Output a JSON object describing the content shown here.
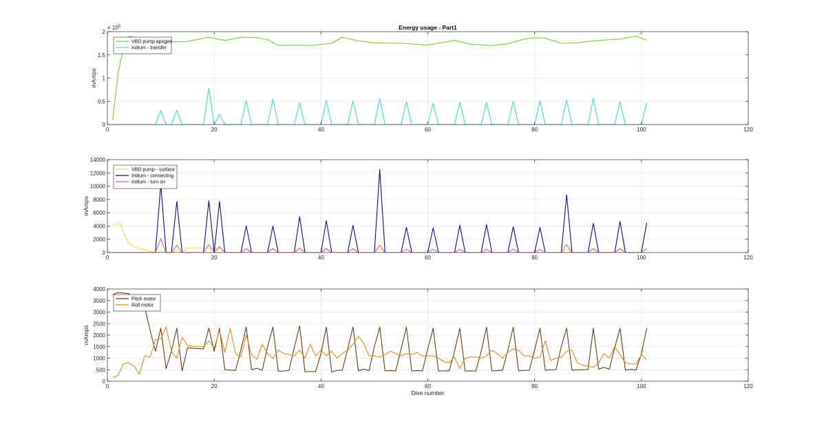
{
  "chart_data": [
    {
      "type": "line",
      "title": "Energy usage - Part1",
      "xlabel": "",
      "ylabel": "mAmps",
      "exponent_label": "× 10",
      "exponent_power": "5",
      "xlim": [
        0,
        120
      ],
      "ylim": [
        0,
        200000
      ],
      "xticks": [
        0,
        20,
        40,
        60,
        80,
        100,
        120
      ],
      "yticks": [
        0,
        50000,
        100000,
        150000,
        200000
      ],
      "ytick_labels": [
        "0",
        "0.5",
        "1",
        "1.5",
        "2"
      ],
      "grid": true,
      "legend_position": "top-left",
      "series": [
        {
          "name": "VBD pump apogee",
          "color": "#77d12e",
          "x": [
            1,
            2,
            3,
            4,
            8,
            10,
            12,
            15,
            19,
            22,
            25,
            28,
            30,
            32,
            35,
            38,
            42,
            44,
            47,
            50,
            55,
            60,
            65,
            68,
            72,
            75,
            78,
            80,
            82,
            85,
            88,
            90,
            93,
            96,
            99,
            101
          ],
          "y": [
            10000,
            110000,
            165000,
            190000,
            182000,
            181000,
            178000,
            179000,
            188000,
            181000,
            188000,
            187000,
            183000,
            170000,
            171000,
            170000,
            175000,
            188000,
            180000,
            176000,
            175000,
            171000,
            181000,
            173000,
            170000,
            174000,
            184000,
            187000,
            186000,
            175000,
            176000,
            179000,
            182000,
            184000,
            190000,
            182000
          ]
        },
        {
          "name": "Iridium - transfer",
          "color": "#3fd7e0",
          "x": [
            1,
            9,
            10,
            11,
            12,
            13,
            14,
            18,
            19,
            20,
            21,
            22,
            25,
            26,
            27,
            30,
            31,
            32,
            35,
            36,
            37,
            40,
            41,
            42,
            45,
            46,
            47,
            50,
            51,
            52,
            55,
            56,
            57,
            60,
            61,
            62,
            65,
            66,
            67,
            70,
            71,
            72,
            75,
            76,
            77,
            80,
            81,
            82,
            85,
            86,
            87,
            90,
            91,
            92,
            95,
            96,
            97,
            100,
            101
          ],
          "y": [
            0,
            0,
            30000,
            0,
            0,
            31000,
            0,
            0,
            78000,
            0,
            22000,
            0,
            0,
            51000,
            0,
            0,
            55000,
            0,
            0,
            47000,
            0,
            0,
            52000,
            0,
            0,
            51000,
            0,
            0,
            56000,
            0,
            0,
            49000,
            0,
            0,
            46000,
            0,
            0,
            48000,
            0,
            0,
            48000,
            0,
            0,
            50000,
            0,
            0,
            51000,
            0,
            0,
            53000,
            0,
            0,
            56000,
            0,
            0,
            49000,
            0,
            0,
            47000
          ]
        }
      ]
    },
    {
      "type": "line",
      "title": "",
      "xlabel": "",
      "ylabel": "mAmps",
      "xlim": [
        0,
        120
      ],
      "ylim": [
        0,
        14000
      ],
      "xticks": [
        0,
        20,
        40,
        60,
        80,
        100,
        120
      ],
      "yticks": [
        0,
        2000,
        4000,
        6000,
        8000,
        10000,
        12000,
        14000
      ],
      "ytick_labels": [
        "0",
        "2000",
        "4000",
        "6000",
        "8000",
        "10000",
        "12000",
        "14000"
      ],
      "grid": true,
      "legend_position": "top-left",
      "series": [
        {
          "name": "VBD pump - surface",
          "color": "#e8e04a",
          "x": [
            1,
            2,
            2.5,
            3,
            4,
            5,
            6,
            8,
            9,
            10,
            11,
            12,
            13,
            14,
            15,
            18,
            19,
            20,
            21,
            22,
            25,
            26,
            27,
            30,
            31,
            32,
            35,
            36,
            37,
            40,
            41,
            42,
            45,
            46,
            47,
            50,
            51,
            52,
            55,
            56,
            57,
            60,
            61,
            62,
            65,
            66,
            67,
            70,
            71,
            72,
            75,
            76,
            77,
            80,
            81,
            82,
            85,
            86,
            87,
            90,
            91,
            92,
            95,
            96,
            97,
            100,
            101
          ],
          "y": [
            4200,
            4300,
            4300,
            3000,
            1500,
            900,
            600,
            200,
            0,
            300,
            100,
            0,
            300,
            0,
            700,
            700,
            700,
            300,
            700,
            0,
            0,
            500,
            0,
            0,
            500,
            0,
            0,
            500,
            0,
            0,
            500,
            0,
            0,
            500,
            0,
            0,
            600,
            0,
            0,
            500,
            0,
            0,
            500,
            0,
            0,
            500,
            0,
            0,
            500,
            0,
            0,
            500,
            0,
            0,
            500,
            0,
            0,
            500,
            0,
            0,
            500,
            0,
            0,
            500,
            0,
            0,
            500
          ]
        },
        {
          "name": "Iridium - connecting",
          "color": "#0a0a8a",
          "x": [
            1,
            9,
            10,
            11,
            12,
            13,
            14,
            18,
            19,
            20,
            21,
            22,
            25,
            26,
            27,
            30,
            31,
            32,
            35,
            36,
            37,
            40,
            41,
            42,
            45,
            46,
            47,
            50,
            51,
            52,
            55,
            56,
            57,
            60,
            61,
            62,
            65,
            66,
            67,
            70,
            71,
            72,
            75,
            76,
            77,
            80,
            81,
            82,
            85,
            86,
            87,
            90,
            91,
            92,
            95,
            96,
            97,
            100,
            101
          ],
          "y": [
            0,
            0,
            10300,
            0,
            0,
            7700,
            0,
            0,
            7800,
            0,
            7700,
            0,
            0,
            4000,
            0,
            0,
            4000,
            0,
            0,
            5400,
            0,
            0,
            4800,
            0,
            0,
            4100,
            0,
            0,
            12500,
            0,
            0,
            3800,
            0,
            0,
            3700,
            0,
            0,
            4100,
            0,
            0,
            4200,
            0,
            0,
            3900,
            0,
            0,
            3800,
            0,
            0,
            8700,
            0,
            0,
            4400,
            0,
            0,
            4700,
            0,
            0,
            4500
          ]
        },
        {
          "name": "Iridium - turn on",
          "color": "#e060b8",
          "x": [
            1,
            9,
            10,
            11,
            12,
            13,
            14,
            18,
            19,
            20,
            21,
            22,
            25,
            26,
            27,
            30,
            31,
            32,
            35,
            36,
            37,
            40,
            41,
            42,
            45,
            46,
            47,
            50,
            51,
            52,
            55,
            56,
            57,
            60,
            61,
            62,
            65,
            66,
            67,
            70,
            71,
            72,
            75,
            76,
            77,
            80,
            81,
            82,
            85,
            86,
            87,
            90,
            91,
            92,
            95,
            96,
            97,
            100,
            101
          ],
          "y": [
            0,
            0,
            2100,
            0,
            0,
            1100,
            0,
            0,
            1200,
            0,
            900,
            0,
            0,
            600,
            0,
            0,
            600,
            0,
            0,
            700,
            0,
            0,
            600,
            0,
            0,
            600,
            0,
            0,
            1100,
            0,
            0,
            500,
            0,
            0,
            500,
            0,
            0,
            500,
            0,
            0,
            500,
            0,
            0,
            500,
            0,
            0,
            500,
            0,
            0,
            1200,
            0,
            0,
            600,
            0,
            0,
            600,
            0,
            0,
            600
          ]
        }
      ]
    },
    {
      "type": "line",
      "title": "",
      "xlabel": "Dive number",
      "ylabel": "mAmps",
      "xlim": [
        0,
        120
      ],
      "ylim": [
        0,
        4000
      ],
      "xticks": [
        0,
        20,
        40,
        60,
        80,
        100,
        120
      ],
      "yticks": [
        0,
        500,
        1000,
        1500,
        2000,
        2500,
        3000,
        3500,
        4000
      ],
      "ytick_labels": [
        "0",
        "500",
        "1000",
        "1500",
        "2000",
        "2500",
        "3000",
        "3500",
        "4000"
      ],
      "grid": true,
      "legend_position": "top-left",
      "series": [
        {
          "name": "Pitch motor",
          "color": "#6b3a12",
          "x": [
            1,
            2,
            4,
            7,
            8,
            9,
            10,
            11,
            12,
            13,
            14,
            15,
            18,
            19,
            20,
            21,
            22,
            23,
            24,
            25,
            26,
            27,
            28,
            29,
            30,
            31,
            32,
            33,
            34,
            35,
            36,
            37,
            38,
            39,
            40,
            41,
            42,
            43,
            44,
            45,
            46,
            47,
            48,
            49,
            50,
            51,
            52,
            53,
            54,
            55,
            56,
            57,
            58,
            59,
            60,
            61,
            62,
            63,
            64,
            65,
            66,
            67,
            68,
            69,
            70,
            71,
            72,
            73,
            74,
            75,
            76,
            77,
            78,
            79,
            80,
            81,
            82,
            83,
            84,
            85,
            86,
            87,
            88,
            89,
            90,
            91,
            92,
            93,
            94,
            95,
            96,
            97,
            98,
            99,
            100,
            101
          ],
          "y": [
            3750,
            3850,
            3800,
            3200,
            2200,
            1300,
            2300,
            550,
            1300,
            2300,
            450,
            1450,
            1400,
            2300,
            1300,
            2300,
            500,
            480,
            470,
            1350,
            2350,
            500,
            560,
            480,
            1500,
            2350,
            430,
            440,
            470,
            1450,
            2400,
            410,
            420,
            420,
            1200,
            2350,
            400,
            470,
            480,
            1400,
            2350,
            450,
            520,
            460,
            1500,
            2350,
            450,
            460,
            450,
            1400,
            2350,
            440,
            460,
            450,
            1400,
            2300,
            440,
            450,
            450,
            1300,
            2300,
            440,
            450,
            440,
            1300,
            2350,
            450,
            460,
            480,
            1350,
            2350,
            450,
            470,
            470,
            1350,
            2300,
            480,
            490,
            500,
            1500,
            2300,
            480,
            490,
            500,
            510,
            2300,
            520,
            600,
            520,
            1450,
            2300,
            480,
            510,
            490,
            1200,
            2300
          ]
        },
        {
          "name": "Roll motor",
          "color": "#e08a1e",
          "x": [
            1,
            2,
            3,
            4,
            5,
            6,
            7,
            8,
            9,
            10,
            11,
            12,
            13,
            14,
            15,
            16,
            18,
            19,
            20,
            21,
            22,
            23,
            24,
            25,
            26,
            27,
            28,
            29,
            30,
            31,
            32,
            33,
            34,
            35,
            36,
            37,
            38,
            39,
            40,
            41,
            42,
            43,
            44,
            45,
            46,
            47,
            48,
            49,
            50,
            51,
            52,
            53,
            54,
            55,
            56,
            57,
            58,
            59,
            60,
            61,
            62,
            63,
            64,
            65,
            66,
            67,
            68,
            69,
            70,
            71,
            72,
            73,
            74,
            75,
            76,
            77,
            78,
            79,
            80,
            81,
            82,
            83,
            84,
            85,
            86,
            87,
            88,
            89,
            90,
            91,
            92,
            93,
            94,
            95,
            96,
            97,
            98,
            99,
            100,
            101
          ],
          "y": [
            150,
            250,
            750,
            800,
            650,
            300,
            1100,
            1050,
            1800,
            1850,
            2350,
            1300,
            1000,
            1900,
            1550,
            1520,
            1500,
            1750,
            1450,
            2200,
            1250,
            2300,
            1200,
            1050,
            2000,
            1150,
            950,
            1600,
            1200,
            1000,
            1350,
            1200,
            1150,
            1100,
            1350,
            1000,
            1600,
            1100,
            1350,
            1100,
            1300,
            1000,
            1200,
            1350,
            1600,
            1950,
            1650,
            1100,
            1100,
            1050,
            1150,
            1300,
            1200,
            1100,
            1200,
            1150,
            1250,
            1100,
            1100,
            1100,
            1000,
            850,
            800,
            1050,
            550,
            1000,
            1050,
            1050,
            1000,
            1100,
            1350,
            1200,
            1000,
            1250,
            1400,
            1350,
            1100,
            1100,
            1000,
            1050,
            1750,
            900,
            1000,
            1050,
            1300,
            1350,
            800,
            700,
            650,
            600,
            800,
            1200,
            1000,
            1500,
            1150,
            800,
            750,
            750,
            1150,
            950
          ]
        }
      ]
    }
  ]
}
